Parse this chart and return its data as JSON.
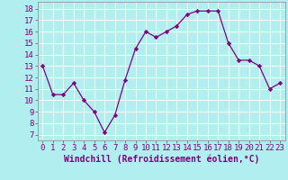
{
  "x": [
    0,
    1,
    2,
    3,
    4,
    5,
    6,
    7,
    8,
    9,
    10,
    11,
    12,
    13,
    14,
    15,
    16,
    17,
    18,
    19,
    20,
    21,
    22,
    23
  ],
  "y": [
    13,
    10.5,
    10.5,
    11.5,
    10.0,
    9.0,
    7.2,
    8.7,
    11.8,
    14.5,
    16.0,
    15.5,
    16.0,
    16.5,
    17.5,
    17.8,
    17.8,
    17.8,
    15.0,
    13.5,
    13.5,
    13.0,
    11.0,
    11.5
  ],
  "line_color": "#800080",
  "marker_color": "#800080",
  "bg_color": "#b0eef0",
  "grid_color": "#ffffff",
  "xlabel": "Windchill (Refroidissement éolien,°C)",
  "xlim": [
    -0.5,
    23.5
  ],
  "ylim": [
    6.5,
    18.6
  ],
  "yticks": [
    7,
    8,
    9,
    10,
    11,
    12,
    13,
    14,
    15,
    16,
    17,
    18
  ],
  "xticks": [
    0,
    1,
    2,
    3,
    4,
    5,
    6,
    7,
    8,
    9,
    10,
    11,
    12,
    13,
    14,
    15,
    16,
    17,
    18,
    19,
    20,
    21,
    22,
    23
  ],
  "xlabel_fontsize": 7.0,
  "tick_fontsize": 6.5
}
